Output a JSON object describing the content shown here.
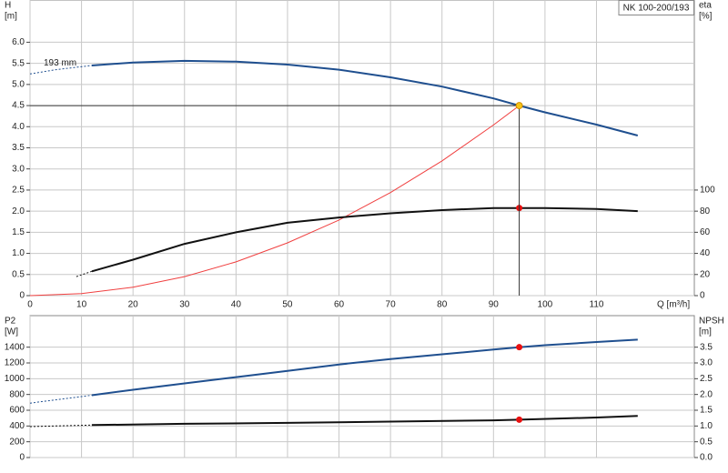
{
  "chart_data": [
    {
      "type": "line",
      "box_label": "NK 100-200/193",
      "curve_label": "193 mm",
      "ylabel": "H",
      "yunit": "[m]",
      "y2label": "eta",
      "y2unit": "[%]",
      "xlabel": "Q [m³/h]",
      "xlim": [
        0,
        129
      ],
      "ylim": [
        0,
        7
      ],
      "y2lim": [
        0,
        280
      ],
      "xticks": [
        0,
        10,
        20,
        30,
        40,
        50,
        60,
        70,
        80,
        90,
        100,
        110
      ],
      "yticks": [
        0,
        {
          "value": 0.5,
          "label": "0.5"
        },
        {
          "value": 1,
          "label": "1.0"
        },
        1.5,
        {
          "value": 2,
          "label": "2.0"
        },
        2.5,
        {
          "value": 3,
          "label": "3.0"
        },
        3.5,
        {
          "value": 4,
          "label": "4.0"
        },
        4.5,
        {
          "value": 5,
          "label": "5.0"
        },
        5.5,
        {
          "value": 6,
          "label": "6.0"
        }
      ],
      "y2ticks": [
        0,
        20,
        40,
        60,
        80,
        100
      ],
      "grid": true,
      "xtick_labels": true,
      "series": [
        {
          "color": "#1f4f8f",
          "width": 2,
          "dashed": true,
          "x": [
            0,
            5,
            12
          ],
          "values": [
            5.25,
            5.35,
            5.45
          ]
        },
        {
          "color": "#1f4f8f",
          "width": 2,
          "x": [
            12,
            20,
            30,
            40,
            50,
            60,
            70,
            80,
            90,
            95,
            100,
            110,
            118
          ],
          "values": [
            5.45,
            5.52,
            5.56,
            5.54,
            5.47,
            5.35,
            5.17,
            4.95,
            4.67,
            4.5,
            4.34,
            4.05,
            3.79
          ]
        },
        {
          "color": "#f04040",
          "width": 1,
          "x": [
            0,
            10,
            20,
            30,
            40,
            50,
            60,
            70,
            80,
            90,
            95
          ],
          "values": [
            0,
            0.05,
            0.2,
            0.45,
            0.8,
            1.25,
            1.79,
            2.44,
            3.19,
            4.04,
            4.5
          ]
        },
        {
          "color": "#111111",
          "width": 2,
          "dashed": true,
          "axis": "y2",
          "x": [
            9,
            12
          ],
          "values": [
            18,
            23
          ]
        },
        {
          "color": "#111111",
          "width": 2,
          "axis": "y2",
          "x": [
            12,
            20,
            30,
            40,
            50,
            60,
            70,
            80,
            90,
            95,
            100,
            110,
            118
          ],
          "values": [
            23,
            34,
            49,
            60,
            69,
            74,
            78,
            81,
            83,
            83,
            83,
            82,
            80
          ]
        }
      ],
      "points": [
        {
          "x": 95,
          "value": 83,
          "axis": "y2",
          "color": "#e81010"
        },
        {
          "x": 95,
          "value": 4.5,
          "color": "#f5c518",
          "guides": true
        }
      ]
    },
    {
      "type": "line",
      "ylabel": "P2",
      "yunit": "[W]",
      "y2label": "NPSH",
      "y2unit": "[m]",
      "xlim": [
        0,
        129
      ],
      "ylim": [
        0,
        1800
      ],
      "y2lim": [
        0,
        4.5
      ],
      "xticks": [
        0,
        10,
        20,
        30,
        40,
        50,
        60,
        70,
        80,
        90,
        100,
        110
      ],
      "yticks": [
        0,
        200,
        400,
        600,
        800,
        1000,
        1200,
        1400
      ],
      "y2ticks": [
        {
          "value": 0,
          "label": "0.0"
        },
        0.5,
        {
          "value": 1,
          "label": "1.0"
        },
        1.5,
        {
          "value": 2,
          "label": "2.0"
        },
        2.5,
        {
          "value": 3,
          "label": "3.0"
        },
        3.5
      ],
      "grid": true,
      "xtick_labels": false,
      "series": [
        {
          "color": "#1f4f8f",
          "width": 2,
          "dashed": true,
          "x": [
            0,
            12
          ],
          "values": [
            690,
            790
          ]
        },
        {
          "color": "#1f4f8f",
          "width": 2,
          "x": [
            12,
            20,
            30,
            40,
            50,
            60,
            70,
            80,
            90,
            95,
            100,
            110,
            118
          ],
          "values": [
            790,
            860,
            940,
            1020,
            1100,
            1180,
            1250,
            1310,
            1370,
            1400,
            1425,
            1465,
            1495
          ]
        },
        {
          "color": "#111111",
          "width": 2,
          "dashed": true,
          "axis": "y2",
          "x": [
            0,
            12
          ],
          "values": [
            0.98,
            1.03
          ]
        },
        {
          "color": "#111111",
          "width": 2,
          "axis": "y2",
          "x": [
            12,
            30,
            50,
            70,
            90,
            95,
            110,
            118
          ],
          "values": [
            1.03,
            1.07,
            1.1,
            1.14,
            1.18,
            1.2,
            1.27,
            1.32
          ]
        }
      ],
      "points": [
        {
          "x": 95,
          "value": 1400,
          "color": "#e81010"
        },
        {
          "x": 95,
          "value": 1.2,
          "axis": "y2",
          "color": "#e81010"
        }
      ]
    }
  ]
}
